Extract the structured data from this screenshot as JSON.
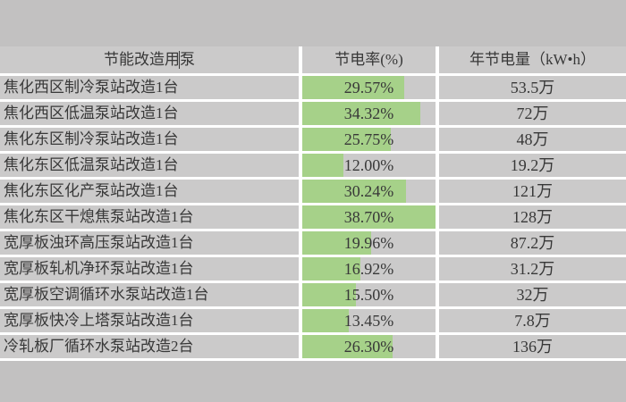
{
  "colors": {
    "background": "#c2c1c1",
    "cell_fill": "#cbcaca",
    "separator": "#ffffff",
    "bar_green": "#a6d189",
    "text": "#383838"
  },
  "chart_data": {
    "type": "table",
    "title": "",
    "columns": [
      "节能改造用泵",
      "节电率(%)",
      "年节电量（kW•h）"
    ],
    "bar": {
      "column": "节电率(%)",
      "scale_min": 0,
      "scale_max": 38.7,
      "color": "#a6d189"
    },
    "rows": [
      {
        "pump": "焦化西区制冷泵站改造1台",
        "rate_label": "29.57%",
        "rate": 29.57,
        "annual": "53.5万"
      },
      {
        "pump": "焦化西区低温泵站改造1台",
        "rate_label": "34.32%",
        "rate": 34.32,
        "annual": "72万"
      },
      {
        "pump": "焦化东区制冷泵站改造1台",
        "rate_label": "25.75%",
        "rate": 25.75,
        "annual": "48万"
      },
      {
        "pump": "焦化东区低温泵站改造1台",
        "rate_label": "12.00%",
        "rate": 12.0,
        "annual": "19.2万"
      },
      {
        "pump": "焦化东区化产泵站改造1台",
        "rate_label": "30.24%",
        "rate": 30.24,
        "annual": "121万"
      },
      {
        "pump": "焦化东区干熄焦泵站改造1台",
        "rate_label": "38.70%",
        "rate": 38.7,
        "annual": "128万"
      },
      {
        "pump": "宽厚板浊环高压泵站改造1台",
        "rate_label": "19.96%",
        "rate": 19.96,
        "annual": "87.2万"
      },
      {
        "pump": "宽厚板轧机净环泵站改造1台",
        "rate_label": "16.92%",
        "rate": 16.92,
        "annual": "31.2万"
      },
      {
        "pump": "宽厚板空调循环水泵站改造1台",
        "rate_label": "15.50%",
        "rate": 15.5,
        "annual": "32万"
      },
      {
        "pump": "宽厚板快冷上塔泵站改造1台",
        "rate_label": "13.45%",
        "rate": 13.45,
        "annual": "7.8万"
      },
      {
        "pump": "冷轧板厂循环水泵站改造2台",
        "rate_label": "26.30%",
        "rate": 26.3,
        "annual": "136万"
      }
    ]
  }
}
